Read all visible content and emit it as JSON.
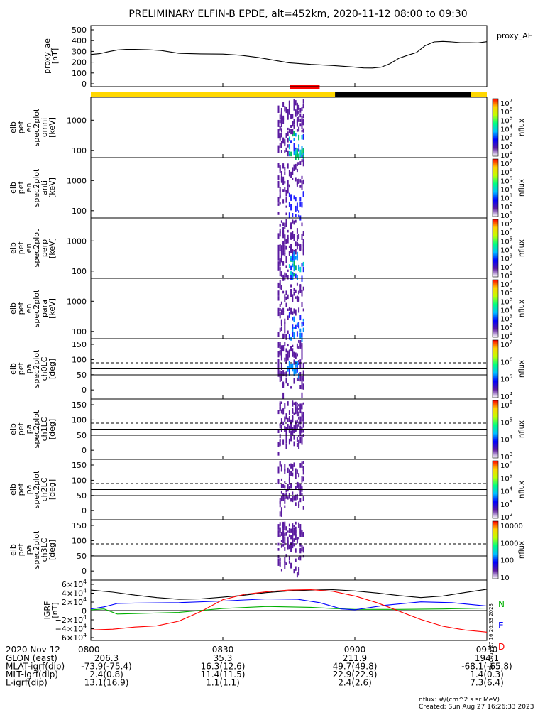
{
  "title": "PRELIMINARY ELFIN-B EPDE, alt=452km, 2020-11-12 08:00 to 09:30",
  "footer": {
    "units": "nflux: #/(cm^2 s sr MeV)",
    "created": "Created: Sun Aug 27 16:26:33 2023",
    "side_stamp": "Sun Aug 27 16:26:33 2023"
  },
  "chart_data": {
    "type": "spectrogram-stack",
    "time_axis": {
      "range": [
        "08:00",
        "09:30"
      ],
      "ticks": [
        "0800",
        "0830",
        "0900",
        "0930"
      ],
      "date": "2020 Nov 12"
    },
    "status_bar": [
      {
        "from_min": 0,
        "to_min": 55.5,
        "color": "#ffd700"
      },
      {
        "from_min": 55.5,
        "to_min": 86.3,
        "color": "#000000"
      },
      {
        "from_min": 86.3,
        "to_min": 90,
        "color": "#ffd700"
      }
    ],
    "science_zone": {
      "from_min": 45.3,
      "to_min": 52.0,
      "color": "#ff0000"
    },
    "panels": [
      {
        "kind": "line",
        "ylabel": [
          "proxy_ae",
          "[nT]"
        ],
        "ylim": [
          0,
          500
        ],
        "yticks": [
          "500",
          "400",
          "300",
          "200",
          "100",
          "0"
        ],
        "legend": "proxy_AE",
        "series": [
          {
            "name": "proxy_AE",
            "color": "#000000",
            "t": [
              0,
              2,
              4,
              6,
              8,
              10,
              13,
              16,
              20,
              25,
              30,
              34,
              38,
              42,
              45,
              50,
              55,
              60,
              62,
              64,
              66,
              68,
              70,
              72,
              74,
              76,
              78,
              80,
              82,
              84,
              86,
              88,
              90
            ],
            "v": [
              265,
              272,
              290,
              305,
              310,
              310,
              308,
              300,
              275,
              270,
              268,
              258,
              238,
              210,
              190,
              175,
              165,
              150,
              143,
              142,
              150,
              182,
              230,
              258,
              282,
              345,
              378,
              383,
              378,
              372,
              372,
              370,
              380
            ]
          }
        ]
      },
      {
        "kind": "spec",
        "ylabel": [
          "elb",
          "pef",
          "en",
          "spec2plot",
          "omni",
          "[keV]"
        ],
        "yticks": [
          "1000",
          "100"
        ],
        "cbar_ticks": [
          "10<sup>7</sup>",
          "10<sup>6</sup>",
          "10<sup>5</sup>",
          "10<sup>4</sup>",
          "10<sup>3</sup>",
          "10<sup>2</sup>",
          "10<sup>1</sup>"
        ],
        "cbar_label": "nflux",
        "intensity": 1.0,
        "seed": 11
      },
      {
        "kind": "spec",
        "ylabel": [
          "elb",
          "pef",
          "en",
          "spec2plot",
          "anti",
          "[keV]"
        ],
        "yticks": [
          "1000",
          "100"
        ],
        "cbar_ticks": [
          "10<sup>7</sup>",
          "10<sup>6</sup>",
          "10<sup>5</sup>",
          "10<sup>4</sup>",
          "10<sup>3</sup>",
          "10<sup>2</sup>",
          "10<sup>1</sup>"
        ],
        "cbar_label": "nflux",
        "intensity": 0.25,
        "seed": 23
      },
      {
        "kind": "spec",
        "ylabel": [
          "elb",
          "pef",
          "en",
          "spec2plot",
          "perp",
          "[keV]"
        ],
        "yticks": [
          "1000",
          "100"
        ],
        "cbar_ticks": [
          "10<sup>7</sup>",
          "10<sup>6</sup>",
          "10<sup>5</sup>",
          "10<sup>4</sup>",
          "10<sup>3</sup>",
          "10<sup>2</sup>",
          "10<sup>1</sup>"
        ],
        "cbar_label": "nflux",
        "intensity": 0.9,
        "seed": 37
      },
      {
        "kind": "spec",
        "ylabel": [
          "elb",
          "pef",
          "en",
          "spec2plot",
          "para",
          "[keV]"
        ],
        "yticks": [
          "1000",
          "100"
        ],
        "cbar_ticks": [
          "10<sup>7</sup>",
          "10<sup>6</sup>",
          "10<sup>5</sup>",
          "10<sup>4</sup>",
          "10<sup>3</sup>",
          "10<sup>2</sup>",
          "10<sup>1</sup>"
        ],
        "cbar_label": "nflux",
        "intensity": 0.35,
        "seed": 53
      },
      {
        "kind": "pa",
        "ylabel": [
          "elb",
          "pef",
          "pa",
          "spec2plot",
          "ch0LC",
          "[deg]"
        ],
        "ylim": [
          0,
          180
        ],
        "yticks": [
          "150",
          "100",
          "50",
          "0"
        ],
        "cbar_ticks": [
          "10<sup>7</sup>",
          "10<sup>6</sup>",
          "10<sup>5</sup>",
          "10<sup>4</sup>"
        ],
        "cbar_label": "nflux",
        "intensity": 1.0,
        "seed": 61
      },
      {
        "kind": "pa",
        "ylabel": [
          "elb",
          "pef",
          "pa",
          "spec2plot",
          "ch1LC",
          "[deg]"
        ],
        "ylim": [
          0,
          180
        ],
        "yticks": [
          "150",
          "100",
          "50",
          "0"
        ],
        "cbar_ticks": [
          "10<sup>6</sup>",
          "10<sup>5</sup>",
          "10<sup>4</sup>",
          "10<sup>3</sup>"
        ],
        "cbar_label": "nflux",
        "intensity": 0.6,
        "seed": 71
      },
      {
        "kind": "pa",
        "ylabel": [
          "elb",
          "pef",
          "pa",
          "spec2plot",
          "ch2LC",
          "[deg]"
        ],
        "ylim": [
          0,
          180
        ],
        "yticks": [
          "150",
          "100",
          "50",
          "0"
        ],
        "cbar_ticks": [
          "10<sup>6</sup>",
          "10<sup>5</sup>",
          "10<sup>4</sup>",
          "10<sup>3</sup>",
          "10<sup>2</sup>"
        ],
        "cbar_label": "nflux",
        "intensity": 0.45,
        "seed": 83
      },
      {
        "kind": "pa",
        "ylabel": [
          "elb",
          "pef",
          "pa",
          "spec2plot",
          "ch3LC",
          "[deg]"
        ],
        "ylim": [
          0,
          180
        ],
        "yticks": [
          "150",
          "100",
          "50",
          "0"
        ],
        "cbar_ticks": [
          "10000",
          "1000",
          "100",
          "10"
        ],
        "cbar_label": "nflux",
        "intensity": 0.55,
        "seed": 97
      },
      {
        "kind": "line",
        "ylabel": [
          "IGRF",
          "[nT]"
        ],
        "ylim": [
          -65000,
          65000
        ],
        "yticks": [
          "6×10<sup>4</sup>",
          "4×10<sup>4</sup>",
          "2×10<sup>4</sup>",
          "0",
          "−2×10<sup>4</sup>",
          "−4×10<sup>4</sup>",
          "−6×10<sup>4</sup>"
        ],
        "legend_letters": [
          {
            "text": "N",
            "color": "#00b000"
          },
          {
            "text": "E",
            "color": "#0000ff"
          },
          {
            "text": "D",
            "color": "#ff0000"
          }
        ],
        "series": [
          {
            "name": "total",
            "color": "#000000",
            "t": [
              0,
              5,
              10,
              15,
              20,
              25,
              30,
              35,
              40,
              45,
              50,
              55,
              60,
              65,
              70,
              75,
              80,
              85,
              90
            ],
            "v": [
              48000,
              43000,
              36000,
              30000,
              26000,
              27000,
              31000,
              36000,
              42000,
              46000,
              48000,
              49000,
              46000,
              41000,
              35000,
              30000,
              34000,
              42000,
              50000
            ]
          },
          {
            "name": "N",
            "color": "#00b000",
            "t": [
              0,
              3,
              6,
              10,
              20,
              30,
              40,
              50,
              55,
              60,
              70,
              80,
              90
            ],
            "v": [
              1000,
              3000,
              -9000,
              -8000,
              -5000,
              4000,
              9000,
              7000,
              4000,
              2000,
              2000,
              3000,
              5000
            ]
          },
          {
            "name": "E",
            "color": "#0000ff",
            "t": [
              0,
              3,
              6,
              10,
              20,
              30,
              40,
              47,
              52,
              57,
              60,
              67,
              75,
              82,
              90
            ],
            "v": [
              3000,
              8000,
              16000,
              17000,
              18000,
              22000,
              27000,
              26000,
              18000,
              3000,
              1000,
              12000,
              20000,
              18000,
              10000
            ]
          },
          {
            "name": "D",
            "color": "#ff0000",
            "t": [
              0,
              5,
              10,
              15,
              20,
              25,
              30,
              35,
              40,
              45,
              50,
              55,
              60,
              65,
              70,
              75,
              80,
              85,
              90
            ],
            "v": [
              -47000,
              -45000,
              -40000,
              -37000,
              -26000,
              -3000,
              25000,
              38000,
              44000,
              48000,
              49000,
              45000,
              34000,
              18000,
              -2000,
              -22000,
              -38000,
              -47000,
              -52000
            ]
          }
        ]
      }
    ],
    "ephemeris": {
      "rows": [
        {
          "label": "GLON (east)",
          "values": [
            "206.3",
            "35.3",
            "211.9",
            "194.1"
          ]
        },
        {
          "label": "MLAT-igrf(dip)",
          "values": [
            "-73.9(-75.4)",
            "16.3(12.6)",
            "49.7(49.8)",
            "-68.1(-65.8)"
          ]
        },
        {
          "label": "MLT-igrf(dip)",
          "values": [
            "2.4(0.8)",
            "11.4(11.5)",
            "22.9(22.9)",
            "1.4(0.3)"
          ]
        },
        {
          "label": "L-igrf(dip)",
          "values": [
            "13.1(16.9)",
            "1.1(1.1)",
            "2.4(2.6)",
            "7.3(6.4)"
          ]
        }
      ]
    }
  }
}
